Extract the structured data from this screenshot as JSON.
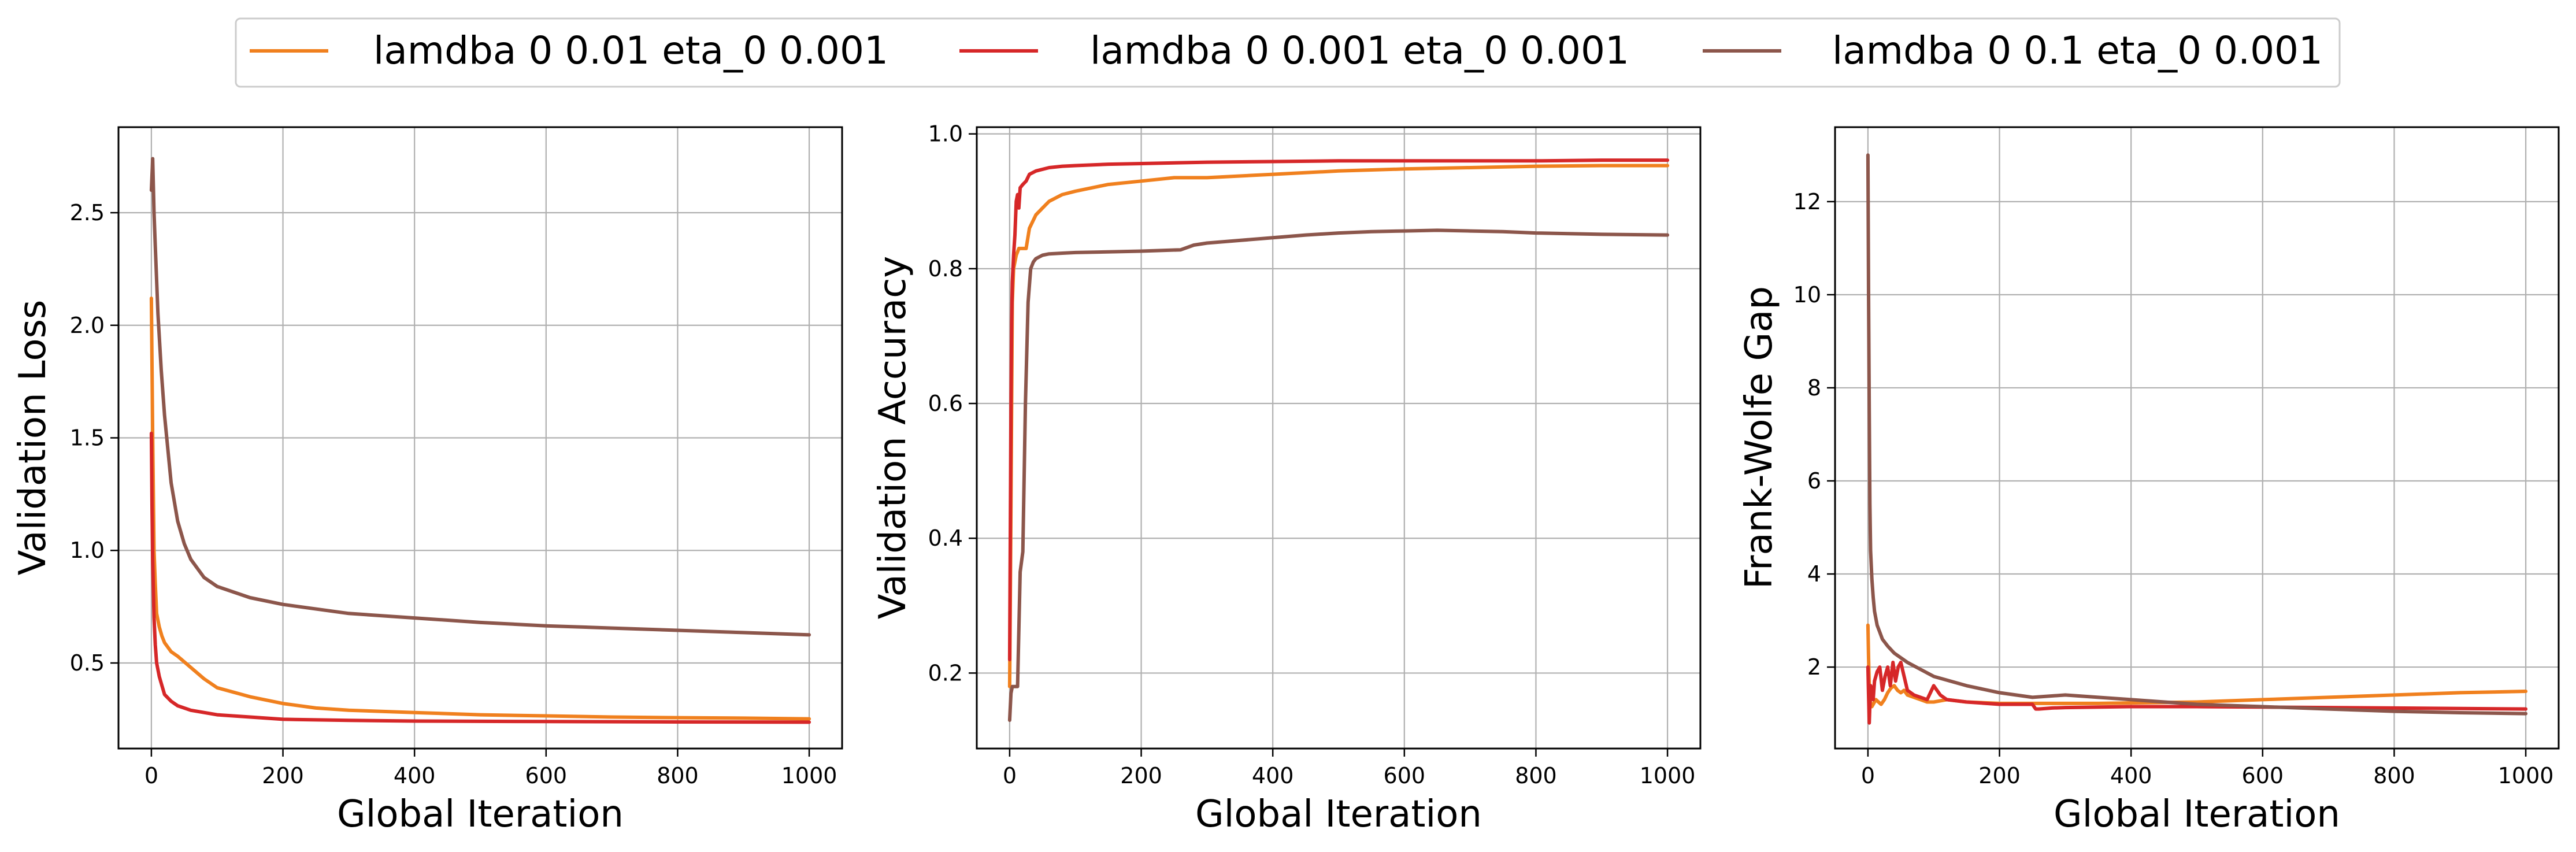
{
  "legend": {
    "placement": "top-center",
    "entries": [
      {
        "label": "lamdba 0 0.01 eta_0 0.001",
        "color": "#f0801e"
      },
      {
        "label": "lamdba 0 0.001 eta_0 0.001",
        "color": "#d62728"
      },
      {
        "label": "lamdba 0 0.1 eta_0 0.001",
        "color": "#8c564b"
      }
    ]
  },
  "chart_data": [
    {
      "type": "line",
      "xlabel": "Global Iteration",
      "ylabel": "Validation Loss",
      "xlim": [
        -50,
        1050
      ],
      "ylim": [
        0.12,
        2.88
      ],
      "xticks": [
        0,
        200,
        400,
        600,
        800,
        1000
      ],
      "yticks": [
        0.5,
        1.0,
        1.5,
        2.0,
        2.5
      ],
      "ytick_labels": [
        "0.5",
        "1.0",
        "1.5",
        "2.0",
        "2.5"
      ],
      "grid": true,
      "series": [
        {
          "name": "lamdba 0 0.01 eta_0 0.001",
          "color": "#f0801e",
          "x": [
            0,
            2,
            4,
            6,
            8,
            12,
            16,
            20,
            30,
            40,
            60,
            80,
            100,
            150,
            200,
            250,
            300,
            400,
            500,
            600,
            700,
            800,
            900,
            1000
          ],
          "y": [
            2.12,
            1.5,
            1.0,
            0.85,
            0.72,
            0.66,
            0.62,
            0.59,
            0.55,
            0.53,
            0.48,
            0.43,
            0.39,
            0.35,
            0.32,
            0.3,
            0.29,
            0.28,
            0.27,
            0.265,
            0.26,
            0.257,
            0.255,
            0.252
          ]
        },
        {
          "name": "lamdba 0 0.001 eta_0 0.001",
          "color": "#d62728",
          "x": [
            0,
            1,
            2,
            4,
            6,
            8,
            12,
            16,
            20,
            30,
            40,
            60,
            80,
            100,
            150,
            200,
            300,
            400,
            600,
            800,
            1000
          ],
          "y": [
            1.52,
            1.2,
            0.95,
            0.7,
            0.58,
            0.5,
            0.44,
            0.4,
            0.36,
            0.33,
            0.31,
            0.29,
            0.28,
            0.27,
            0.26,
            0.25,
            0.245,
            0.242,
            0.24,
            0.238,
            0.237
          ]
        },
        {
          "name": "lamdba 0 0.1 eta_0 0.001",
          "color": "#8c564b",
          "x": [
            0,
            2,
            4,
            6,
            8,
            10,
            15,
            20,
            30,
            40,
            50,
            60,
            80,
            100,
            150,
            200,
            300,
            400,
            500,
            600,
            700,
            800,
            900,
            1000
          ],
          "y": [
            2.6,
            2.74,
            2.5,
            2.35,
            2.2,
            2.05,
            1.8,
            1.6,
            1.3,
            1.13,
            1.03,
            0.96,
            0.88,
            0.84,
            0.79,
            0.76,
            0.72,
            0.7,
            0.68,
            0.665,
            0.655,
            0.645,
            0.635,
            0.625
          ]
        }
      ]
    },
    {
      "type": "line",
      "xlabel": "Global Iteration",
      "ylabel": "Validation Accuracy",
      "xlim": [
        -50,
        1050
      ],
      "ylim": [
        0.088,
        1.01
      ],
      "xticks": [
        0,
        200,
        400,
        600,
        800,
        1000
      ],
      "yticks": [
        0.2,
        0.4,
        0.6,
        0.8,
        1.0
      ],
      "ytick_labels": [
        "0.2",
        "0.4",
        "0.6",
        "0.8",
        "1.0"
      ],
      "grid": true,
      "series": [
        {
          "name": "lamdba 0 0.01 eta_0 0.001",
          "color": "#f0801e",
          "x": [
            0,
            2,
            4,
            6,
            8,
            10,
            12,
            14,
            20,
            25,
            30,
            40,
            50,
            60,
            80,
            100,
            150,
            200,
            250,
            300,
            400,
            500,
            600,
            700,
            800,
            900,
            1000
          ],
          "y": [
            0.18,
            0.45,
            0.75,
            0.8,
            0.81,
            0.82,
            0.825,
            0.83,
            0.83,
            0.83,
            0.86,
            0.88,
            0.89,
            0.9,
            0.91,
            0.915,
            0.925,
            0.93,
            0.935,
            0.935,
            0.94,
            0.945,
            0.948,
            0.95,
            0.952,
            0.953,
            0.953
          ]
        },
        {
          "name": "lamdba 0 0.001 eta_0 0.001",
          "color": "#d62728",
          "x": [
            0,
            1,
            2,
            3,
            4,
            6,
            8,
            10,
            12,
            14,
            16,
            20,
            25,
            30,
            40,
            60,
            80,
            100,
            150,
            200,
            300,
            400,
            500,
            600,
            700,
            800,
            900,
            1000
          ],
          "y": [
            0.22,
            0.4,
            0.6,
            0.72,
            0.78,
            0.82,
            0.85,
            0.9,
            0.91,
            0.89,
            0.92,
            0.925,
            0.93,
            0.94,
            0.945,
            0.95,
            0.952,
            0.953,
            0.955,
            0.956,
            0.958,
            0.959,
            0.96,
            0.96,
            0.96,
            0.96,
            0.961,
            0.961
          ]
        },
        {
          "name": "lamdba 0 0.1 eta_0 0.001",
          "color": "#8c564b",
          "x": [
            0,
            2,
            4,
            8,
            12,
            16,
            20,
            24,
            28,
            32,
            36,
            40,
            50,
            60,
            80,
            100,
            200,
            260,
            280,
            300,
            350,
            400,
            450,
            500,
            550,
            600,
            650,
            700,
            750,
            800,
            850,
            900,
            1000
          ],
          "y": [
            0.13,
            0.17,
            0.18,
            0.18,
            0.18,
            0.35,
            0.38,
            0.6,
            0.75,
            0.8,
            0.81,
            0.815,
            0.82,
            0.822,
            0.823,
            0.824,
            0.826,
            0.828,
            0.835,
            0.838,
            0.842,
            0.846,
            0.85,
            0.853,
            0.855,
            0.856,
            0.857,
            0.856,
            0.855,
            0.853,
            0.852,
            0.851,
            0.85
          ]
        }
      ]
    },
    {
      "type": "line",
      "xlabel": "Global Iteration",
      "ylabel": "Frank-Wolfe Gap",
      "xlim": [
        -50,
        1050
      ],
      "ylim": [
        0.25,
        13.6
      ],
      "xticks": [
        0,
        200,
        400,
        600,
        800,
        1000
      ],
      "yticks": [
        2,
        4,
        6,
        8,
        10,
        12
      ],
      "ytick_labels": [
        "2",
        "4",
        "6",
        "8",
        "10",
        "12"
      ],
      "grid": true,
      "series": [
        {
          "name": "lamdba 0 0.01 eta_0 0.001",
          "color": "#f0801e",
          "x": [
            0,
            1,
            2,
            4,
            6,
            8,
            12,
            16,
            20,
            25,
            30,
            35,
            40,
            45,
            50,
            55,
            60,
            70,
            80,
            90,
            100,
            120,
            150,
            200,
            250,
            300,
            350,
            400,
            500,
            600,
            700,
            800,
            900,
            1000
          ],
          "y": [
            2.9,
            2.2,
            1.6,
            1.2,
            1.15,
            1.2,
            1.3,
            1.25,
            1.2,
            1.3,
            1.45,
            1.55,
            1.6,
            1.5,
            1.45,
            1.5,
            1.4,
            1.35,
            1.3,
            1.25,
            1.25,
            1.3,
            1.25,
            1.22,
            1.22,
            1.22,
            1.22,
            1.23,
            1.25,
            1.3,
            1.35,
            1.4,
            1.45,
            1.48
          ]
        },
        {
          "name": "lamdba 0 0.001 eta_0 0.001",
          "color": "#d62728",
          "x": [
            0,
            1,
            2,
            3,
            4,
            6,
            8,
            10,
            14,
            18,
            22,
            26,
            30,
            34,
            38,
            42,
            46,
            50,
            55,
            60,
            70,
            80,
            90,
            100,
            110,
            120,
            150,
            200,
            250,
            255,
            260,
            280,
            300,
            400,
            500,
            600,
            700,
            800,
            900,
            1000
          ],
          "y": [
            2.0,
            1.4,
            0.8,
            1.2,
            1.6,
            1.5,
            1.3,
            1.7,
            1.9,
            2.0,
            1.5,
            1.8,
            2.0,
            1.6,
            2.1,
            1.7,
            2.0,
            2.1,
            1.8,
            1.5,
            1.4,
            1.35,
            1.3,
            1.6,
            1.4,
            1.3,
            1.25,
            1.2,
            1.2,
            1.1,
            1.1,
            1.12,
            1.13,
            1.15,
            1.15,
            1.14,
            1.13,
            1.12,
            1.11,
            1.1
          ]
        },
        {
          "name": "lamdba 0 0.1 eta_0 0.001",
          "color": "#8c564b",
          "x": [
            0,
            1,
            2,
            3,
            4,
            6,
            8,
            10,
            14,
            18,
            22,
            30,
            40,
            50,
            60,
            80,
            100,
            150,
            200,
            250,
            300,
            350,
            400,
            500,
            600,
            700,
            800,
            900,
            1000
          ],
          "y": [
            13.0,
            10.0,
            7.5,
            5.5,
            4.5,
            3.9,
            3.5,
            3.2,
            2.9,
            2.75,
            2.6,
            2.45,
            2.3,
            2.2,
            2.1,
            1.95,
            1.8,
            1.6,
            1.45,
            1.35,
            1.4,
            1.35,
            1.3,
            1.2,
            1.15,
            1.1,
            1.05,
            1.02,
            1.0
          ]
        }
      ]
    }
  ]
}
